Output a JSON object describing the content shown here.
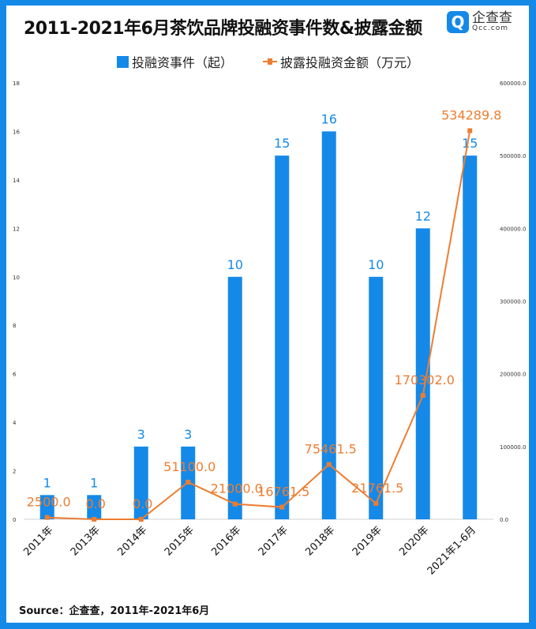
{
  "title": "2011-2021年6月茶饮品牌投融资事件数&披露金额",
  "logo": {
    "cn": "企查查",
    "en": "Qcc.com",
    "mark": "Q"
  },
  "source": "Source：企查查，2011年-2021年6月",
  "colors": {
    "bar": "#1589e8",
    "line": "#ed7d31"
  },
  "chart_data": {
    "type": "bar+line",
    "categories": [
      "2011年",
      "2013年",
      "2014年",
      "2015年",
      "2016年",
      "2017年",
      "2018年",
      "2019年",
      "2020年",
      "2021年1-6月"
    ],
    "series": [
      {
        "name": "投融资事件（起）",
        "type": "bar",
        "axis": "left",
        "values": [
          1,
          1,
          3,
          3,
          10,
          15,
          16,
          10,
          12,
          15
        ],
        "labels": [
          "1",
          "1",
          "3",
          "3",
          "10",
          "15",
          "16",
          "10",
          "12",
          "15"
        ]
      },
      {
        "name": "披露投融资金额（万元）",
        "type": "line",
        "axis": "right",
        "values": [
          2500.0,
          0.0,
          0.0,
          51100.0,
          21000.0,
          16761.5,
          75461.5,
          21761.5,
          170302.0,
          534289.8
        ],
        "labels": [
          "2500.0",
          "0.0",
          "0.0",
          "51100.0",
          "21000.0",
          "16761.5",
          "75461.5",
          "21761.5",
          "170302.0",
          "534289.8"
        ]
      }
    ],
    "left_axis": {
      "ylim": [
        0,
        18
      ],
      "ticks": [
        "0",
        "2",
        "4",
        "6",
        "8",
        "10",
        "12",
        "14",
        "16",
        "18"
      ]
    },
    "right_axis": {
      "ylim": [
        0,
        600000
      ],
      "ticks": [
        "0.0",
        "100000.0",
        "200000.0",
        "300000.0",
        "400000.0",
        "500000.0",
        "600000.0"
      ]
    },
    "legend": "top-center",
    "grid": false
  }
}
